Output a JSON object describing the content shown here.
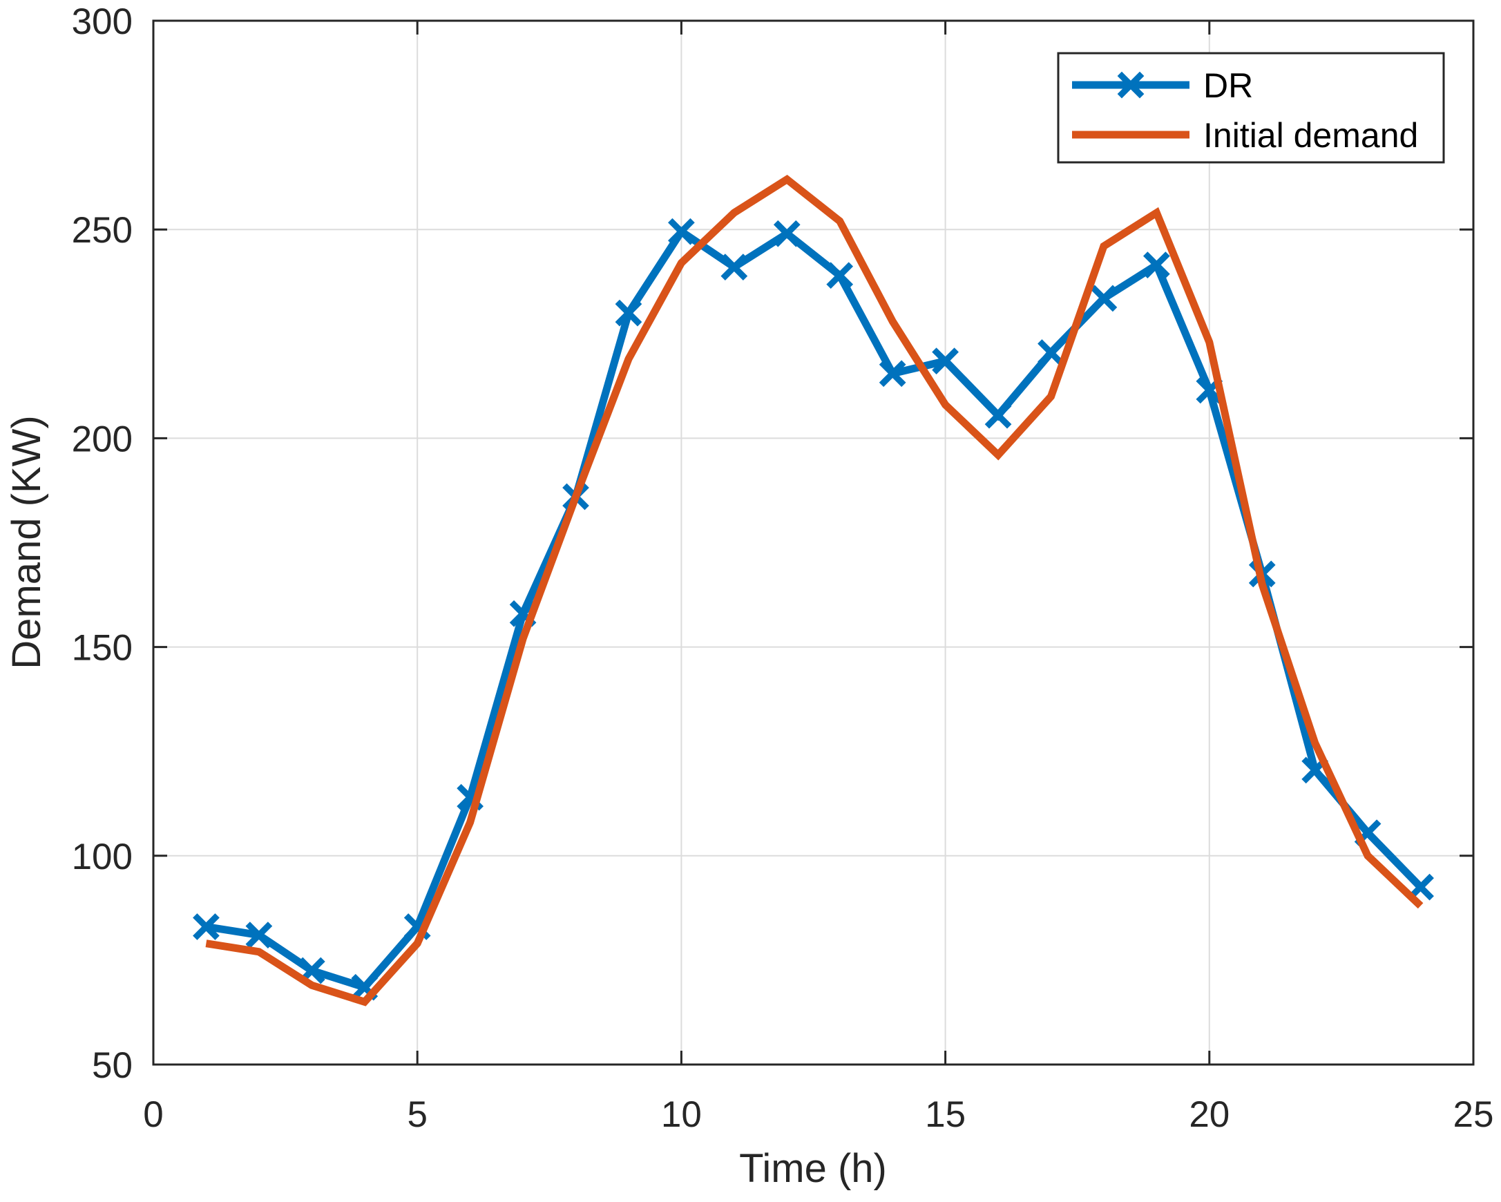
{
  "chart_data": {
    "type": "line",
    "title": "",
    "xlabel": "Time (h)",
    "ylabel": "Demand (KW)",
    "xlim": [
      0,
      25
    ],
    "ylim": [
      50,
      300
    ],
    "xticks": [
      0,
      5,
      10,
      15,
      20,
      25
    ],
    "yticks": [
      50,
      100,
      150,
      200,
      250,
      300
    ],
    "grid": true,
    "legend_position": "top-right",
    "x": [
      1,
      2,
      3,
      4,
      5,
      6,
      7,
      8,
      9,
      10,
      11,
      12,
      13,
      14,
      15,
      16,
      17,
      18,
      19,
      20,
      21,
      22,
      23,
      24
    ],
    "series": [
      {
        "name": "DR",
        "color": "#0072BD",
        "marker": "x",
        "values": [
          83,
          81,
          72.5,
          68.5,
          83,
          114,
          158,
          186,
          230,
          249.5,
          241,
          249,
          239,
          215.5,
          218.5,
          205.5,
          220.5,
          233.5,
          241.5,
          211.5,
          167.5,
          120.5,
          105.5,
          92.5
        ]
      },
      {
        "name": "Initial demand",
        "color": "#D95319",
        "marker": "none",
        "values": [
          79,
          77,
          69,
          65,
          79,
          108,
          152,
          186,
          219,
          242,
          254,
          262,
          252,
          228,
          208,
          196,
          210,
          246,
          254,
          223,
          165,
          127,
          100,
          88
        ]
      }
    ]
  }
}
